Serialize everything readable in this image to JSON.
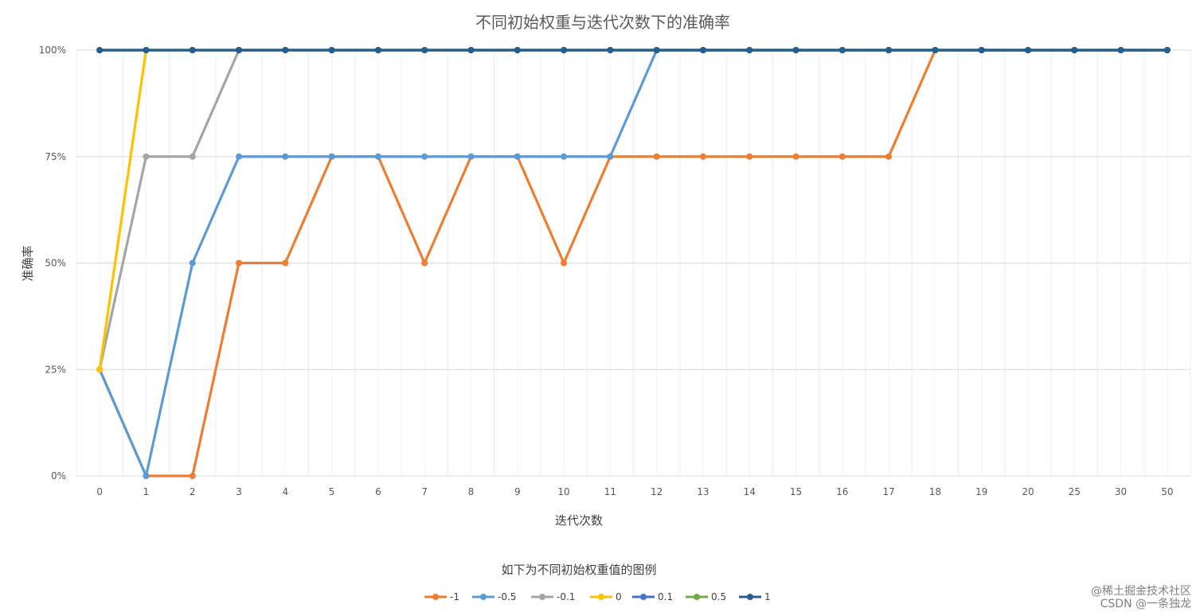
{
  "chart_data": {
    "type": "line",
    "title": "不同初始权重与迭代次数下的准确率",
    "xlabel": "迭代次数",
    "ylabel": "准确率",
    "categories": [
      "0",
      "1",
      "2",
      "3",
      "4",
      "5",
      "6",
      "7",
      "8",
      "9",
      "10",
      "11",
      "12",
      "13",
      "14",
      "15",
      "16",
      "17",
      "18",
      "19",
      "20",
      "25",
      "30",
      "50"
    ],
    "y_ticks": [
      "0%",
      "25%",
      "50%",
      "75%",
      "100%"
    ],
    "ylim": [
      0,
      100
    ],
    "grid": true,
    "legend_caption": "如下为不同初始权重值的图例",
    "legend_position": "bottom",
    "series": [
      {
        "name": "-1",
        "color": "#ED7D31",
        "values": [
          25,
          0,
          0,
          50,
          50,
          75,
          75,
          50,
          75,
          75,
          50,
          75,
          75,
          75,
          75,
          75,
          75,
          75,
          100,
          100,
          100,
          100,
          100,
          100
        ]
      },
      {
        "name": "-0.5",
        "color": "#5B9BD5",
        "values": [
          25,
          0,
          50,
          75,
          75,
          75,
          75,
          75,
          75,
          75,
          75,
          75,
          100,
          100,
          100,
          100,
          100,
          100,
          100,
          100,
          100,
          100,
          100,
          100
        ]
      },
      {
        "name": "-0.1",
        "color": "#A5A5A5",
        "values": [
          25,
          75,
          75,
          100,
          100,
          100,
          100,
          100,
          100,
          100,
          100,
          100,
          100,
          100,
          100,
          100,
          100,
          100,
          100,
          100,
          100,
          100,
          100,
          100
        ]
      },
      {
        "name": "0",
        "color": "#FFC000",
        "values": [
          25,
          100,
          null,
          null,
          null,
          null,
          null,
          null,
          null,
          null,
          null,
          null,
          null,
          null,
          null,
          null,
          null,
          null,
          null,
          null,
          null,
          null,
          null,
          null
        ]
      },
      {
        "name": "0.1",
        "color": "#4472C4",
        "values": [
          100,
          100,
          100,
          100,
          100,
          100,
          100,
          100,
          100,
          100,
          100,
          100,
          100,
          100,
          100,
          100,
          100,
          100,
          100,
          100,
          100,
          100,
          100,
          100
        ]
      },
      {
        "name": "0.5",
        "color": "#70AD47",
        "values": [
          100,
          100,
          100,
          100,
          100,
          100,
          100,
          100,
          100,
          100,
          100,
          100,
          100,
          100,
          100,
          100,
          100,
          100,
          100,
          100,
          100,
          100,
          100,
          100
        ]
      },
      {
        "name": "1",
        "color": "#255E91",
        "values": [
          100,
          100,
          100,
          100,
          100,
          100,
          100,
          100,
          100,
          100,
          100,
          100,
          100,
          100,
          100,
          100,
          100,
          100,
          100,
          100,
          100,
          100,
          100,
          100
        ]
      }
    ]
  },
  "watermark": "CSDN @一条独龙",
  "watermark2": "@稀土掘金技术社区"
}
